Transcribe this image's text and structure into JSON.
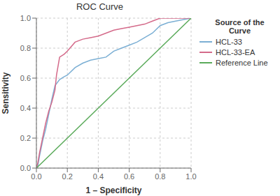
{
  "chart_data": {
    "type": "line",
    "title": "ROC Curve",
    "xlabel": "1 – Specificity",
    "ylabel": "Sensitivity",
    "xlim": [
      0.0,
      1.0
    ],
    "ylim": [
      0.0,
      1.0
    ],
    "xticks": [
      {
        "value": 0.0,
        "label": "0.0"
      },
      0.2,
      0.4,
      0.6,
      0.8,
      {
        "value": 1.0,
        "label": "1.0"
      }
    ],
    "yticks": [
      {
        "value": 0.0,
        "label": "0.0"
      },
      0.2,
      0.4,
      0.6,
      0.8,
      {
        "value": 1.0,
        "label": "1.0"
      }
    ],
    "grid": true,
    "legend": "right",
    "legend_title": "Source of the\nCurve",
    "series": [
      {
        "name": "HCL-33",
        "color": "#7bafd4",
        "x": [
          0.0,
          0.01,
          0.02,
          0.04,
          0.06,
          0.08,
          0.1,
          0.12,
          0.15,
          0.18,
          0.2,
          0.25,
          0.3,
          0.35,
          0.4,
          0.45,
          0.5,
          0.55,
          0.6,
          0.65,
          0.7,
          0.75,
          0.8,
          0.85,
          0.9,
          1.0
        ],
        "values": [
          0.0,
          0.02,
          0.08,
          0.18,
          0.26,
          0.36,
          0.46,
          0.55,
          0.59,
          0.61,
          0.62,
          0.67,
          0.7,
          0.72,
          0.73,
          0.74,
          0.78,
          0.8,
          0.82,
          0.84,
          0.87,
          0.9,
          0.95,
          0.97,
          0.98,
          1.0
        ]
      },
      {
        "name": "HCL-33-EA",
        "color": "#d46a8a",
        "x": [
          0.0,
          0.01,
          0.02,
          0.04,
          0.06,
          0.08,
          0.1,
          0.12,
          0.13,
          0.15,
          0.18,
          0.2,
          0.25,
          0.3,
          0.35,
          0.4,
          0.45,
          0.5,
          0.55,
          0.6,
          0.65,
          0.7,
          0.75,
          0.8,
          0.9,
          1.0
        ],
        "values": [
          0.0,
          0.04,
          0.1,
          0.2,
          0.3,
          0.38,
          0.44,
          0.52,
          0.62,
          0.74,
          0.76,
          0.78,
          0.84,
          0.86,
          0.87,
          0.88,
          0.9,
          0.92,
          0.93,
          0.94,
          0.95,
          0.96,
          0.98,
          1.0,
          1.0,
          1.0
        ]
      },
      {
        "name": "Reference Line",
        "color": "#5aaa5a",
        "x": [
          0,
          1
        ],
        "values": [
          0,
          1
        ]
      }
    ]
  }
}
